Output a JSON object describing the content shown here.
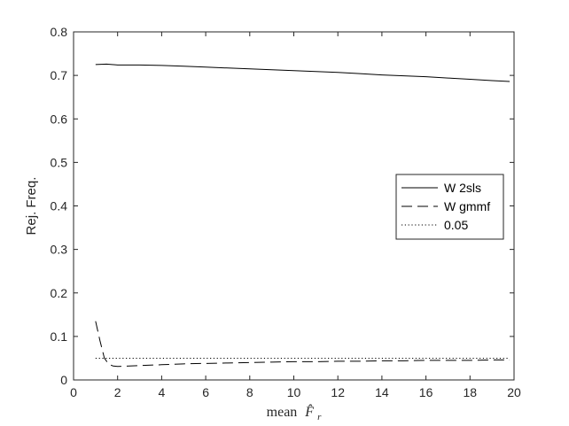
{
  "chart_data": {
    "type": "line",
    "title": "",
    "xlabel": "mean",
    "xlabel_math": "F̂",
    "xlabel_sub": "r",
    "ylabel": "Rej. Freq.",
    "xlim": [
      0,
      20
    ],
    "ylim": [
      0,
      0.8
    ],
    "xticks": [
      "0",
      "2",
      "4",
      "6",
      "8",
      "10",
      "12",
      "14",
      "16",
      "18",
      "20"
    ],
    "yticks": [
      "0",
      "0.1",
      "0.2",
      "0.3",
      "0.4",
      "0.5",
      "0.6",
      "0.7",
      "0.8"
    ],
    "grid": false,
    "legend_placement": "right-middle",
    "series": [
      {
        "name": "W 2sls",
        "style": "solid",
        "color": "#000000",
        "x": [
          1,
          1.5,
          2,
          3,
          4,
          5,
          6,
          7,
          8,
          9,
          10,
          11,
          12,
          13,
          14,
          15,
          16,
          17,
          18,
          19,
          19.8
        ],
        "y": [
          0.725,
          0.726,
          0.724,
          0.724,
          0.723,
          0.721,
          0.719,
          0.717,
          0.715,
          0.713,
          0.711,
          0.709,
          0.707,
          0.704,
          0.701,
          0.699,
          0.697,
          0.694,
          0.691,
          0.688,
          0.686
        ]
      },
      {
        "name": "W gmmf",
        "style": "dashed",
        "color": "#000000",
        "x": [
          1,
          1.2,
          1.4,
          1.6,
          1.8,
          2,
          3,
          4,
          5,
          6,
          7,
          8,
          9,
          10,
          11,
          12,
          13,
          14,
          15,
          16,
          17,
          18,
          19,
          19.8
        ],
        "y": [
          0.135,
          0.09,
          0.05,
          0.036,
          0.032,
          0.031,
          0.033,
          0.035,
          0.037,
          0.038,
          0.039,
          0.04,
          0.041,
          0.042,
          0.042,
          0.043,
          0.043,
          0.044,
          0.044,
          0.045,
          0.045,
          0.045,
          0.046,
          0.046
        ]
      },
      {
        "name": "0.05",
        "style": "dotted",
        "color": "#000000",
        "x": [
          1,
          19.8
        ],
        "y": [
          0.05,
          0.05
        ]
      }
    ]
  }
}
